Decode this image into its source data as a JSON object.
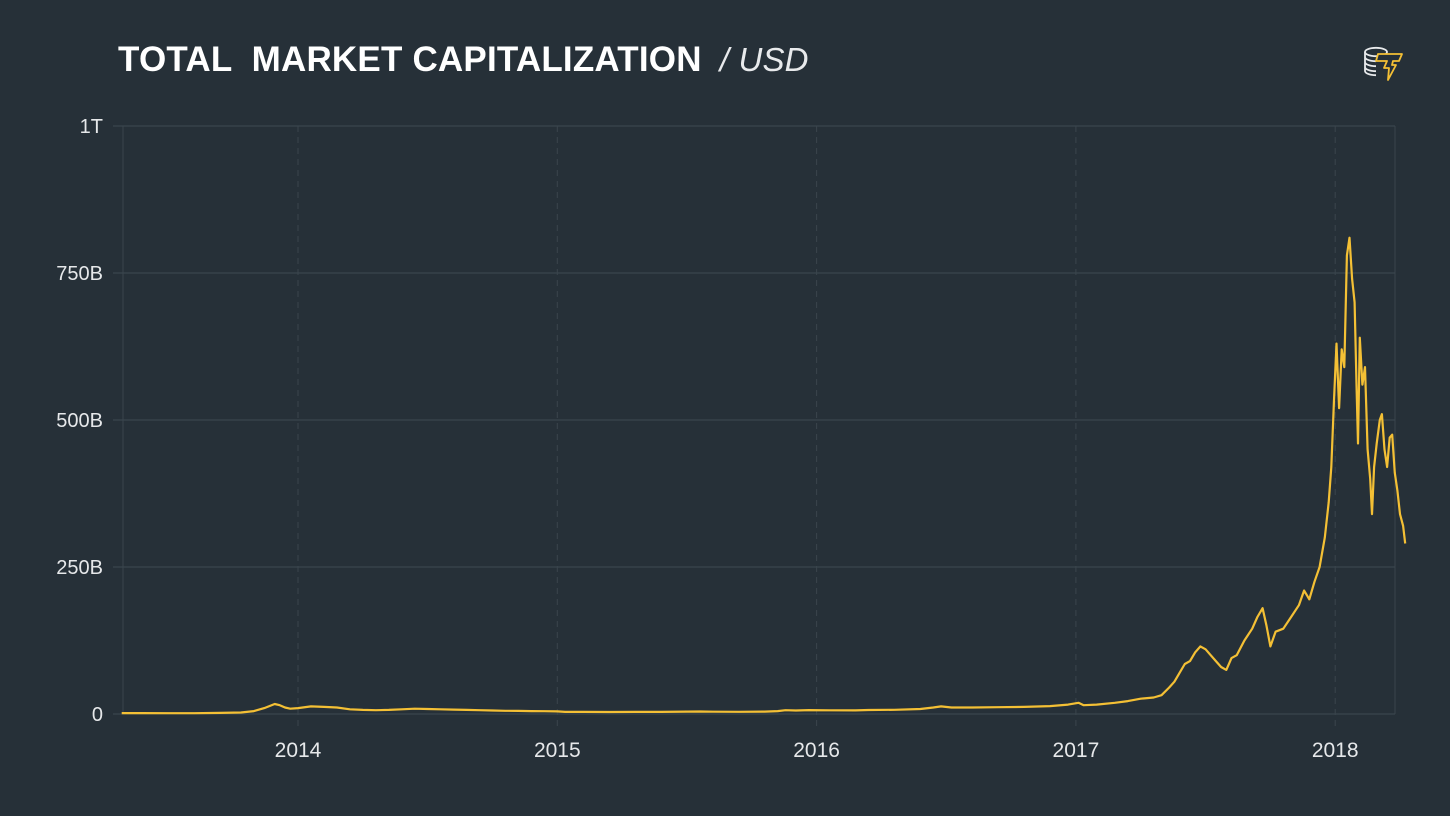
{
  "header": {
    "title": "TOTAL  MARKET CAPITALIZATION",
    "unit": "/ USD",
    "logo_icon": "coins-lightning-logo"
  },
  "colors": {
    "background": "#263038",
    "line": "#f4c035",
    "grid": "#3a454d",
    "text": "#e6e8ea"
  },
  "chart_data": {
    "type": "line",
    "title": "TOTAL MARKET CAPITALIZATION / USD",
    "xlabel": "",
    "ylabel": "",
    "ylim": [
      0,
      1000
    ],
    "y_unit": "billion USD",
    "y_ticks": [
      {
        "value": 0,
        "label": "0"
      },
      {
        "value": 250,
        "label": "250B"
      },
      {
        "value": 500,
        "label": "500B"
      },
      {
        "value": 750,
        "label": "750B"
      },
      {
        "value": 1000,
        "label": "1T"
      }
    ],
    "x_ticks": [
      {
        "value": 2014,
        "label": "2014"
      },
      {
        "value": 2015,
        "label": "2015"
      },
      {
        "value": 2016,
        "label": "2016"
      },
      {
        "value": 2017,
        "label": "2017"
      },
      {
        "value": 2018,
        "label": "2018"
      }
    ],
    "xlim": [
      2013.32,
      2018.27
    ],
    "grid": true,
    "legend": null,
    "series": [
      {
        "name": "Total Market Capitalization (USD, billions)",
        "points": [
          [
            2013.32,
            1.6
          ],
          [
            2013.4,
            1.5
          ],
          [
            2013.5,
            1.3
          ],
          [
            2013.6,
            1.4
          ],
          [
            2013.7,
            1.8
          ],
          [
            2013.78,
            2.5
          ],
          [
            2013.83,
            5
          ],
          [
            2013.87,
            10
          ],
          [
            2013.91,
            17
          ],
          [
            2013.93,
            15
          ],
          [
            2013.95,
            11
          ],
          [
            2013.97,
            9
          ],
          [
            2014.0,
            10
          ],
          [
            2014.05,
            13
          ],
          [
            2014.1,
            12
          ],
          [
            2014.15,
            11
          ],
          [
            2014.2,
            8
          ],
          [
            2014.25,
            7
          ],
          [
            2014.3,
            6.5
          ],
          [
            2014.35,
            7
          ],
          [
            2014.4,
            8
          ],
          [
            2014.45,
            9
          ],
          [
            2014.5,
            8.5
          ],
          [
            2014.55,
            8
          ],
          [
            2014.6,
            7.5
          ],
          [
            2014.65,
            7
          ],
          [
            2014.7,
            6.5
          ],
          [
            2014.75,
            6
          ],
          [
            2014.8,
            5.5
          ],
          [
            2014.85,
            5.2
          ],
          [
            2014.9,
            5
          ],
          [
            2014.95,
            4.8
          ],
          [
            2015.0,
            4.5
          ],
          [
            2015.03,
            3.5
          ],
          [
            2015.1,
            3.6
          ],
          [
            2015.2,
            3.4
          ],
          [
            2015.3,
            3.6
          ],
          [
            2015.4,
            3.5
          ],
          [
            2015.5,
            4
          ],
          [
            2015.55,
            4.2
          ],
          [
            2015.6,
            3.9
          ],
          [
            2015.7,
            3.8
          ],
          [
            2015.8,
            4.1
          ],
          [
            2015.85,
            5
          ],
          [
            2015.88,
            6.5
          ],
          [
            2015.92,
            6
          ],
          [
            2015.97,
            6.7
          ],
          [
            2016.05,
            6.3
          ],
          [
            2016.15,
            6.2
          ],
          [
            2016.2,
            6.8
          ],
          [
            2016.3,
            7.2
          ],
          [
            2016.4,
            8.5
          ],
          [
            2016.45,
            11
          ],
          [
            2016.48,
            13
          ],
          [
            2016.52,
            11
          ],
          [
            2016.6,
            11
          ],
          [
            2016.7,
            11.5
          ],
          [
            2016.8,
            12
          ],
          [
            2016.9,
            13.5
          ],
          [
            2016.97,
            16
          ],
          [
            2017.01,
            19
          ],
          [
            2017.03,
            15
          ],
          [
            2017.08,
            16
          ],
          [
            2017.15,
            19
          ],
          [
            2017.2,
            22
          ],
          [
            2017.25,
            26
          ],
          [
            2017.3,
            28
          ],
          [
            2017.33,
            32
          ],
          [
            2017.36,
            45
          ],
          [
            2017.38,
            55
          ],
          [
            2017.4,
            70
          ],
          [
            2017.42,
            85
          ],
          [
            2017.44,
            90
          ],
          [
            2017.46,
            105
          ],
          [
            2017.48,
            115
          ],
          [
            2017.5,
            110
          ],
          [
            2017.52,
            100
          ],
          [
            2017.54,
            90
          ],
          [
            2017.56,
            80
          ],
          [
            2017.58,
            75
          ],
          [
            2017.6,
            95
          ],
          [
            2017.62,
            100
          ],
          [
            2017.65,
            125
          ],
          [
            2017.68,
            145
          ],
          [
            2017.7,
            165
          ],
          [
            2017.72,
            180
          ],
          [
            2017.735,
            150
          ],
          [
            2017.75,
            115
          ],
          [
            2017.77,
            140
          ],
          [
            2017.8,
            145
          ],
          [
            2017.83,
            165
          ],
          [
            2017.86,
            185
          ],
          [
            2017.88,
            210
          ],
          [
            2017.9,
            195
          ],
          [
            2017.92,
            225
          ],
          [
            2017.94,
            250
          ],
          [
            2017.96,
            300
          ],
          [
            2017.975,
            360
          ],
          [
            2017.985,
            420
          ],
          [
            2017.995,
            530
          ],
          [
            2018.005,
            630
          ],
          [
            2018.015,
            520
          ],
          [
            2018.025,
            620
          ],
          [
            2018.035,
            590
          ],
          [
            2018.045,
            780
          ],
          [
            2018.055,
            810
          ],
          [
            2018.065,
            740
          ],
          [
            2018.075,
            700
          ],
          [
            2018.082,
            560
          ],
          [
            2018.088,
            460
          ],
          [
            2018.095,
            640
          ],
          [
            2018.105,
            560
          ],
          [
            2018.115,
            590
          ],
          [
            2018.125,
            450
          ],
          [
            2018.135,
            400
          ],
          [
            2018.142,
            340
          ],
          [
            2018.15,
            420
          ],
          [
            2018.16,
            460
          ],
          [
            2018.172,
            500
          ],
          [
            2018.18,
            510
          ],
          [
            2018.19,
            450
          ],
          [
            2018.2,
            420
          ],
          [
            2018.21,
            470
          ],
          [
            2018.22,
            475
          ],
          [
            2018.23,
            410
          ],
          [
            2018.24,
            380
          ],
          [
            2018.25,
            340
          ],
          [
            2018.262,
            320
          ],
          [
            2018.27,
            290
          ]
        ]
      }
    ]
  }
}
